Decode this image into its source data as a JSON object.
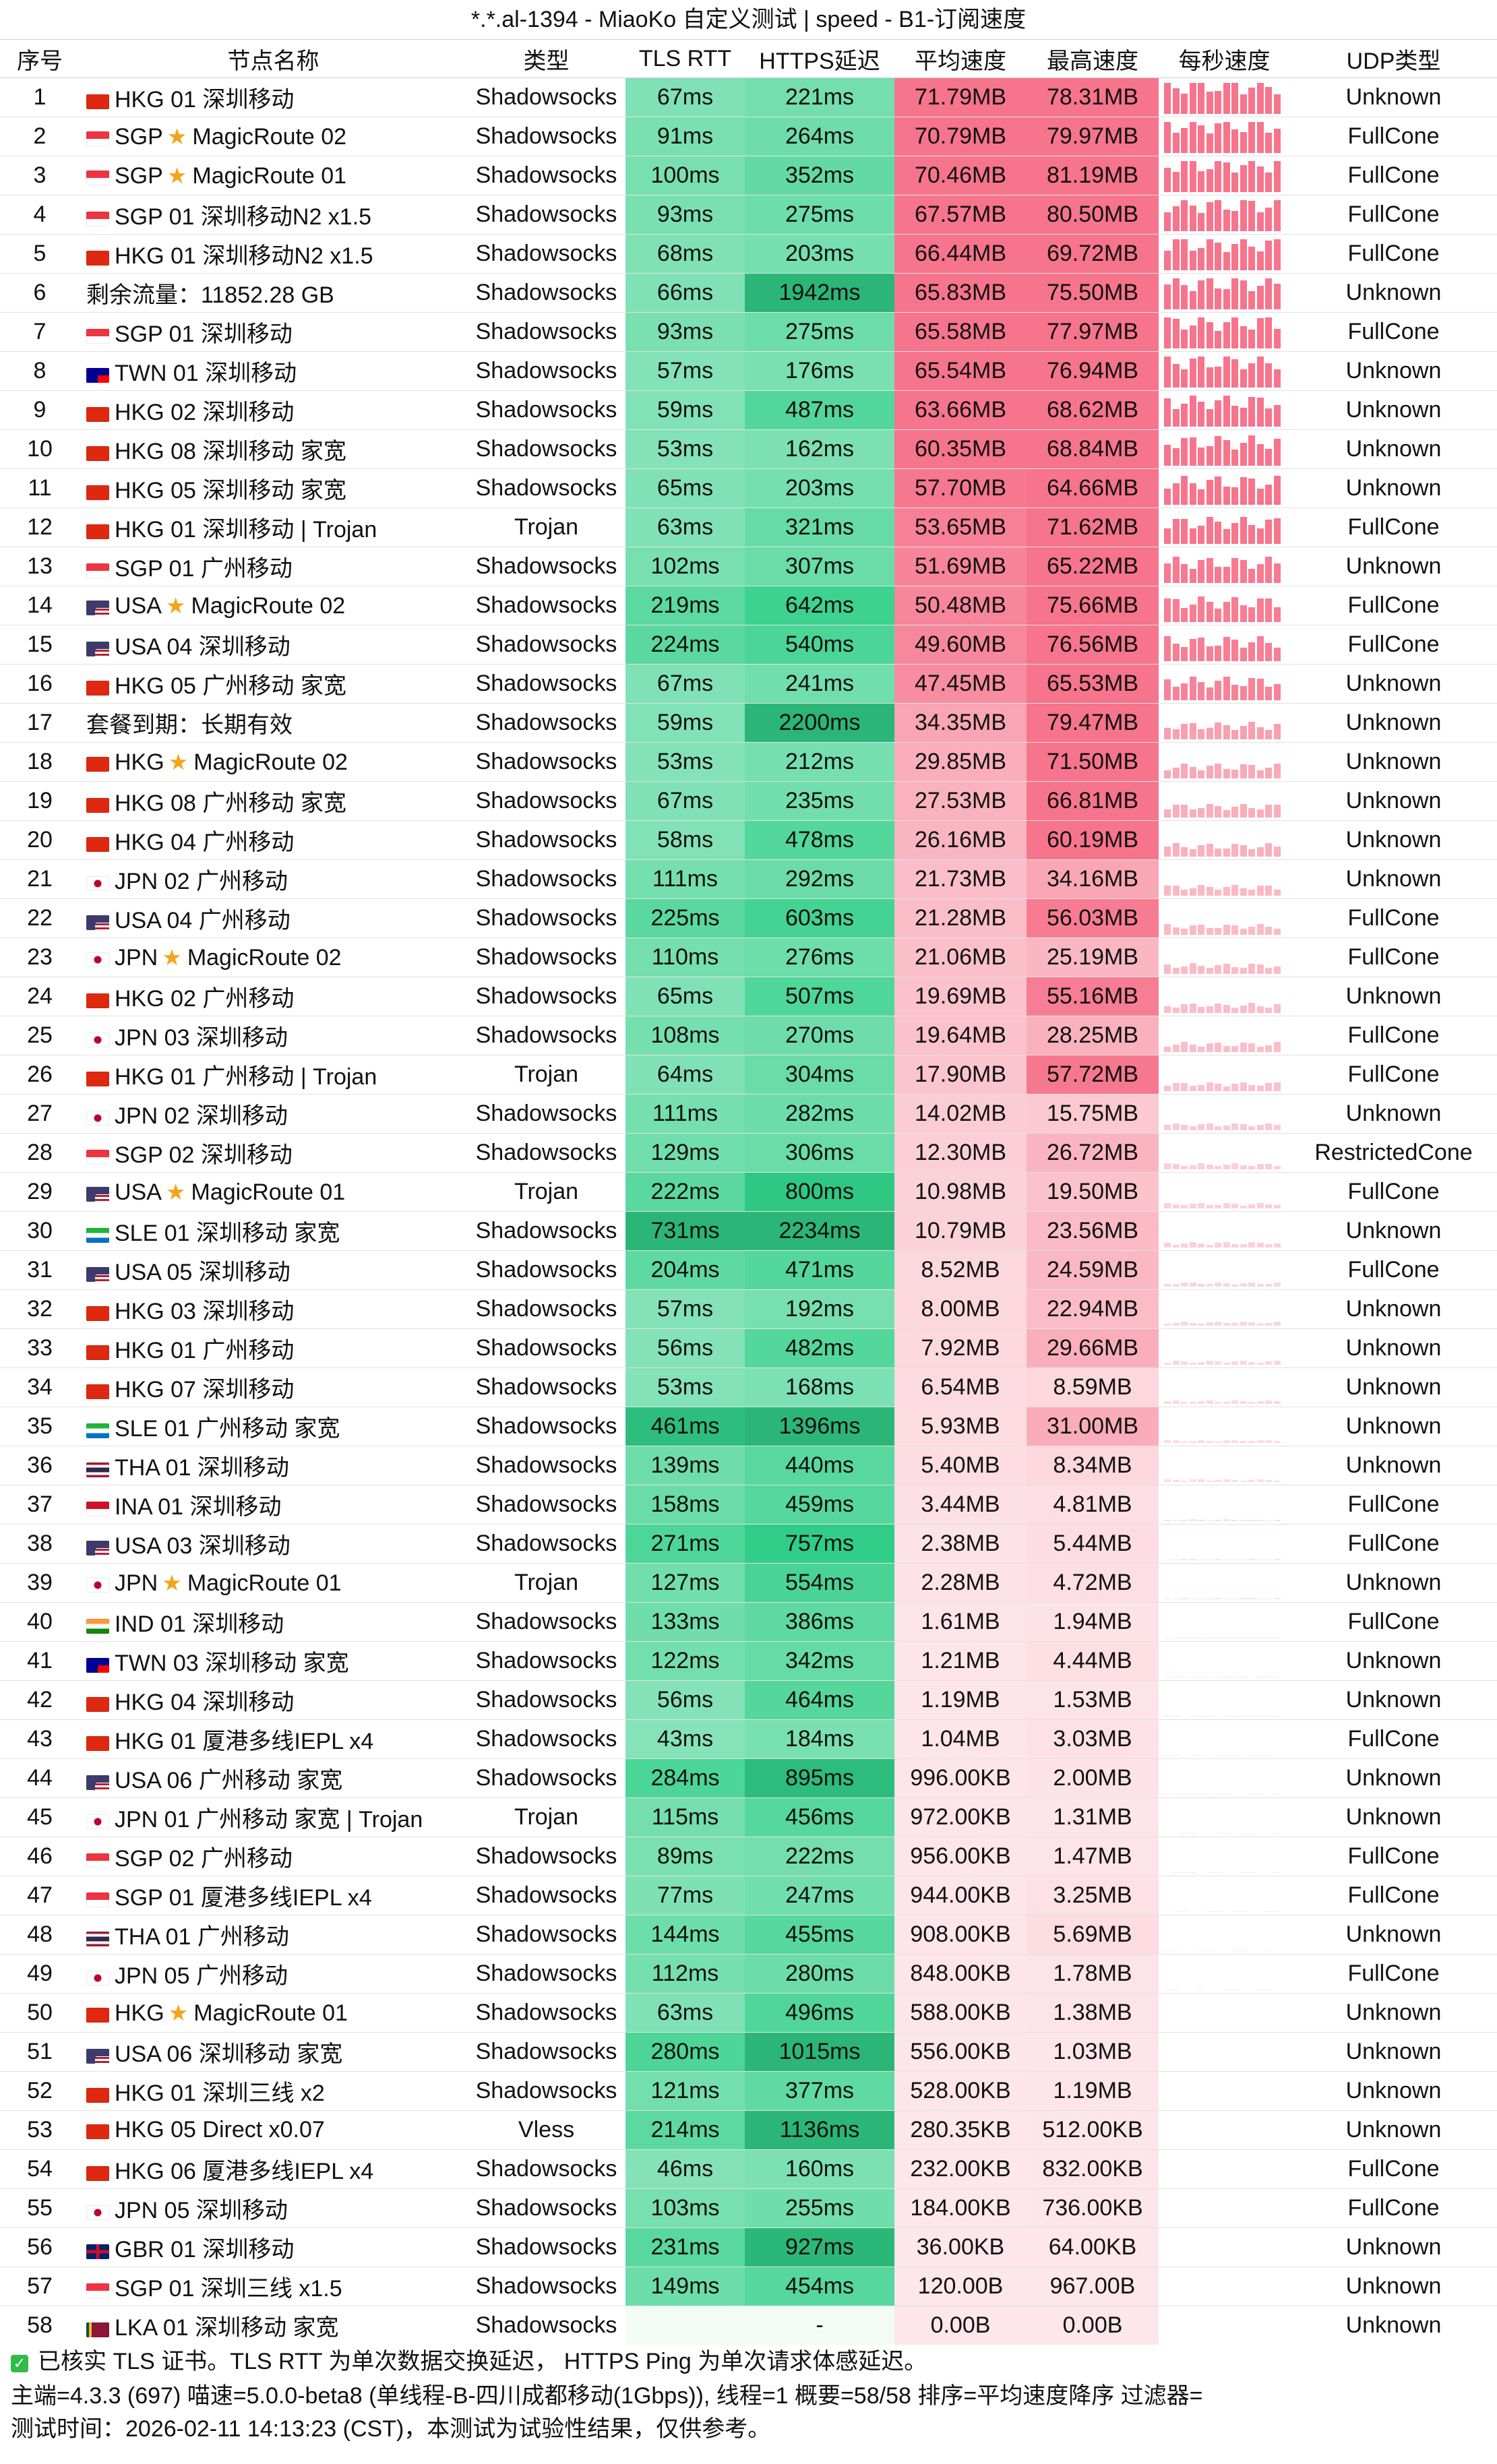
{
  "title": "*.*.al-1394 - MiaoKo 自定义测试 | speed - B1-订阅速度",
  "headers": [
    "序号",
    "节点名称",
    "类型",
    "TLS RTT",
    "HTTPS延迟",
    "平均速度",
    "最高速度",
    "每秒速度",
    "UDP类型"
  ],
  "rows": [
    {
      "idx": "1",
      "flag": "hk",
      "name": "HKG 01 深圳移动",
      "type": "Shadowsocks",
      "rtt": "67ms",
      "https": "221ms",
      "avg": "71.79MB",
      "max": "78.31MB",
      "udp": "Unknown"
    },
    {
      "idx": "2",
      "flag": "sg",
      "name": "SGP",
      "star": true,
      "name2": "MagicRoute 02",
      "type": "Shadowsocks",
      "rtt": "91ms",
      "https": "264ms",
      "avg": "70.79MB",
      "max": "79.97MB",
      "udp": "FullCone"
    },
    {
      "idx": "3",
      "flag": "sg",
      "name": "SGP",
      "star": true,
      "name2": "MagicRoute 01",
      "type": "Shadowsocks",
      "rtt": "100ms",
      "https": "352ms",
      "avg": "70.46MB",
      "max": "81.19MB",
      "udp": "FullCone"
    },
    {
      "idx": "4",
      "flag": "sg",
      "name": "SGP 01 深圳移动N2 x1.5",
      "type": "Shadowsocks",
      "rtt": "93ms",
      "https": "275ms",
      "avg": "67.57MB",
      "max": "80.50MB",
      "udp": "FullCone"
    },
    {
      "idx": "5",
      "flag": "hk",
      "name": "HKG 01 深圳移动N2 x1.5",
      "type": "Shadowsocks",
      "rtt": "68ms",
      "https": "203ms",
      "avg": "66.44MB",
      "max": "69.72MB",
      "udp": "FullCone"
    },
    {
      "idx": "6",
      "flag": "",
      "name": "剩余流量：11852.28 GB",
      "type": "Shadowsocks",
      "rtt": "66ms",
      "https": "1942ms",
      "avg": "65.83MB",
      "max": "75.50MB",
      "udp": "Unknown"
    },
    {
      "idx": "7",
      "flag": "sg",
      "name": "SGP 01 深圳移动",
      "type": "Shadowsocks",
      "rtt": "93ms",
      "https": "275ms",
      "avg": "65.58MB",
      "max": "77.97MB",
      "udp": "FullCone"
    },
    {
      "idx": "8",
      "flag": "tw",
      "name": "TWN 01 深圳移动",
      "type": "Shadowsocks",
      "rtt": "57ms",
      "https": "176ms",
      "avg": "65.54MB",
      "max": "76.94MB",
      "udp": "Unknown"
    },
    {
      "idx": "9",
      "flag": "hk",
      "name": "HKG 02 深圳移动",
      "type": "Shadowsocks",
      "rtt": "59ms",
      "https": "487ms",
      "avg": "63.66MB",
      "max": "68.62MB",
      "udp": "Unknown"
    },
    {
      "idx": "10",
      "flag": "hk",
      "name": "HKG 08 深圳移动 家宽",
      "type": "Shadowsocks",
      "rtt": "53ms",
      "https": "162ms",
      "avg": "60.35MB",
      "max": "68.84MB",
      "udp": "Unknown"
    },
    {
      "idx": "11",
      "flag": "hk",
      "name": "HKG 05 深圳移动 家宽",
      "type": "Shadowsocks",
      "rtt": "65ms",
      "https": "203ms",
      "avg": "57.70MB",
      "max": "64.66MB",
      "udp": "Unknown"
    },
    {
      "idx": "12",
      "flag": "hk",
      "name": "HKG 01 深圳移动 | Trojan",
      "type": "Trojan",
      "rtt": "63ms",
      "https": "321ms",
      "avg": "53.65MB",
      "max": "71.62MB",
      "udp": "FullCone"
    },
    {
      "idx": "13",
      "flag": "sg",
      "name": "SGP 01 广州移动",
      "type": "Shadowsocks",
      "rtt": "102ms",
      "https": "307ms",
      "avg": "51.69MB",
      "max": "65.22MB",
      "udp": "Unknown"
    },
    {
      "idx": "14",
      "flag": "us",
      "name": "USA",
      "star": true,
      "name2": "MagicRoute 02",
      "type": "Shadowsocks",
      "rtt": "219ms",
      "https": "642ms",
      "avg": "50.48MB",
      "max": "75.66MB",
      "udp": "FullCone"
    },
    {
      "idx": "15",
      "flag": "us",
      "name": "USA 04 深圳移动",
      "type": "Shadowsocks",
      "rtt": "224ms",
      "https": "540ms",
      "avg": "49.60MB",
      "max": "76.56MB",
      "udp": "FullCone"
    },
    {
      "idx": "16",
      "flag": "hk",
      "name": "HKG 05 广州移动 家宽",
      "type": "Shadowsocks",
      "rtt": "67ms",
      "https": "241ms",
      "avg": "47.45MB",
      "max": "65.53MB",
      "udp": "Unknown"
    },
    {
      "idx": "17",
      "flag": "",
      "name": "套餐到期：长期有效",
      "type": "Shadowsocks",
      "rtt": "59ms",
      "https": "2200ms",
      "avg": "34.35MB",
      "max": "79.47MB",
      "udp": "Unknown"
    },
    {
      "idx": "18",
      "flag": "hk",
      "name": "HKG",
      "star": true,
      "name2": "MagicRoute 02",
      "type": "Shadowsocks",
      "rtt": "53ms",
      "https": "212ms",
      "avg": "29.85MB",
      "max": "71.50MB",
      "udp": "Unknown"
    },
    {
      "idx": "19",
      "flag": "hk",
      "name": "HKG 08 广州移动 家宽",
      "type": "Shadowsocks",
      "rtt": "67ms",
      "https": "235ms",
      "avg": "27.53MB",
      "max": "66.81MB",
      "udp": "Unknown"
    },
    {
      "idx": "20",
      "flag": "hk",
      "name": "HKG 04 广州移动",
      "type": "Shadowsocks",
      "rtt": "58ms",
      "https": "478ms",
      "avg": "26.16MB",
      "max": "60.19MB",
      "udp": "Unknown"
    },
    {
      "idx": "21",
      "flag": "jp",
      "name": "JPN 02 广州移动",
      "type": "Shadowsocks",
      "rtt": "111ms",
      "https": "292ms",
      "avg": "21.73MB",
      "max": "34.16MB",
      "udp": "Unknown"
    },
    {
      "idx": "22",
      "flag": "us",
      "name": "USA 04 广州移动",
      "type": "Shadowsocks",
      "rtt": "225ms",
      "https": "603ms",
      "avg": "21.28MB",
      "max": "56.03MB",
      "udp": "FullCone"
    },
    {
      "idx": "23",
      "flag": "jp",
      "name": "JPN",
      "star": true,
      "name2": "MagicRoute 02",
      "type": "Shadowsocks",
      "rtt": "110ms",
      "https": "276ms",
      "avg": "21.06MB",
      "max": "25.19MB",
      "udp": "FullCone"
    },
    {
      "idx": "24",
      "flag": "hk",
      "name": "HKG 02 广州移动",
      "type": "Shadowsocks",
      "rtt": "65ms",
      "https": "507ms",
      "avg": "19.69MB",
      "max": "55.16MB",
      "udp": "Unknown"
    },
    {
      "idx": "25",
      "flag": "jp",
      "name": "JPN 03 深圳移动",
      "type": "Shadowsocks",
      "rtt": "108ms",
      "https": "270ms",
      "avg": "19.64MB",
      "max": "28.25MB",
      "udp": "FullCone"
    },
    {
      "idx": "26",
      "flag": "hk",
      "name": "HKG 01 广州移动 | Trojan",
      "type": "Trojan",
      "rtt": "64ms",
      "https": "304ms",
      "avg": "17.90MB",
      "max": "57.72MB",
      "udp": "FullCone"
    },
    {
      "idx": "27",
      "flag": "jp",
      "name": "JPN 02 深圳移动",
      "type": "Shadowsocks",
      "rtt": "111ms",
      "https": "282ms",
      "avg": "14.02MB",
      "max": "15.75MB",
      "udp": "Unknown"
    },
    {
      "idx": "28",
      "flag": "sg",
      "name": "SGP 02 深圳移动",
      "type": "Shadowsocks",
      "rtt": "129ms",
      "https": "306ms",
      "avg": "12.30MB",
      "max": "26.72MB",
      "udp": "RestrictedCone"
    },
    {
      "idx": "29",
      "flag": "us",
      "name": "USA",
      "star": true,
      "name2": "MagicRoute 01",
      "type": "Trojan",
      "rtt": "222ms",
      "https": "800ms",
      "avg": "10.98MB",
      "max": "19.50MB",
      "udp": "FullCone"
    },
    {
      "idx": "30",
      "flag": "sl",
      "name": "SLE 01 深圳移动 家宽",
      "type": "Shadowsocks",
      "rtt": "731ms",
      "https": "2234ms",
      "avg": "10.79MB",
      "max": "23.56MB",
      "udp": "Unknown"
    },
    {
      "idx": "31",
      "flag": "us",
      "name": "USA 05 深圳移动",
      "type": "Shadowsocks",
      "rtt": "204ms",
      "https": "471ms",
      "avg": "8.52MB",
      "max": "24.59MB",
      "udp": "FullCone"
    },
    {
      "idx": "32",
      "flag": "hk",
      "name": "HKG 03 深圳移动",
      "type": "Shadowsocks",
      "rtt": "57ms",
      "https": "192ms",
      "avg": "8.00MB",
      "max": "22.94MB",
      "udp": "Unknown"
    },
    {
      "idx": "33",
      "flag": "hk",
      "name": "HKG 01 广州移动",
      "type": "Shadowsocks",
      "rtt": "56ms",
      "https": "482ms",
      "avg": "7.92MB",
      "max": "29.66MB",
      "udp": "Unknown"
    },
    {
      "idx": "34",
      "flag": "hk",
      "name": "HKG 07 深圳移动",
      "type": "Shadowsocks",
      "rtt": "53ms",
      "https": "168ms",
      "avg": "6.54MB",
      "max": "8.59MB",
      "udp": "Unknown"
    },
    {
      "idx": "35",
      "flag": "sl",
      "name": "SLE 01 广州移动 家宽",
      "type": "Shadowsocks",
      "rtt": "461ms",
      "https": "1396ms",
      "avg": "5.93MB",
      "max": "31.00MB",
      "udp": "Unknown"
    },
    {
      "idx": "36",
      "flag": "th",
      "name": "THA 01 深圳移动",
      "type": "Shadowsocks",
      "rtt": "139ms",
      "https": "440ms",
      "avg": "5.40MB",
      "max": "8.34MB",
      "udp": "Unknown"
    },
    {
      "idx": "37",
      "flag": "id",
      "name": "INA 01 深圳移动",
      "type": "Shadowsocks",
      "rtt": "158ms",
      "https": "459ms",
      "avg": "3.44MB",
      "max": "4.81MB",
      "udp": "FullCone"
    },
    {
      "idx": "38",
      "flag": "us",
      "name": "USA 03 深圳移动",
      "type": "Shadowsocks",
      "rtt": "271ms",
      "https": "757ms",
      "avg": "2.38MB",
      "max": "5.44MB",
      "udp": "FullCone"
    },
    {
      "idx": "39",
      "flag": "jp",
      "name": "JPN",
      "star": true,
      "name2": "MagicRoute 01",
      "type": "Trojan",
      "rtt": "127ms",
      "https": "554ms",
      "avg": "2.28MB",
      "max": "4.72MB",
      "udp": "Unknown"
    },
    {
      "idx": "40",
      "flag": "in",
      "name": "IND 01 深圳移动",
      "type": "Shadowsocks",
      "rtt": "133ms",
      "https": "386ms",
      "avg": "1.61MB",
      "max": "1.94MB",
      "udp": "FullCone"
    },
    {
      "idx": "41",
      "flag": "tw",
      "name": "TWN 03 深圳移动 家宽",
      "type": "Shadowsocks",
      "rtt": "122ms",
      "https": "342ms",
      "avg": "1.21MB",
      "max": "4.44MB",
      "udp": "Unknown"
    },
    {
      "idx": "42",
      "flag": "hk",
      "name": "HKG 04 深圳移动",
      "type": "Shadowsocks",
      "rtt": "56ms",
      "https": "464ms",
      "avg": "1.19MB",
      "max": "1.53MB",
      "udp": "Unknown"
    },
    {
      "idx": "43",
      "flag": "hk",
      "name": "HKG 01 厦港多线IEPL x4",
      "type": "Shadowsocks",
      "rtt": "43ms",
      "https": "184ms",
      "avg": "1.04MB",
      "max": "3.03MB",
      "udp": "FullCone"
    },
    {
      "idx": "44",
      "flag": "us",
      "name": "USA 06 广州移动 家宽",
      "type": "Shadowsocks",
      "rtt": "284ms",
      "https": "895ms",
      "avg": "996.00KB",
      "max": "2.00MB",
      "udp": "Unknown"
    },
    {
      "idx": "45",
      "flag": "jp",
      "name": "JPN 01 广州移动 家宽 | Trojan",
      "type": "Trojan",
      "rtt": "115ms",
      "https": "456ms",
      "avg": "972.00KB",
      "max": "1.31MB",
      "udp": "Unknown"
    },
    {
      "idx": "46",
      "flag": "sg",
      "name": "SGP 02 广州移动",
      "type": "Shadowsocks",
      "rtt": "89ms",
      "https": "222ms",
      "avg": "956.00KB",
      "max": "1.47MB",
      "udp": "FullCone"
    },
    {
      "idx": "47",
      "flag": "sg",
      "name": "SGP 01 厦港多线IEPL x4",
      "type": "Shadowsocks",
      "rtt": "77ms",
      "https": "247ms",
      "avg": "944.00KB",
      "max": "3.25MB",
      "udp": "FullCone"
    },
    {
      "idx": "48",
      "flag": "th",
      "name": "THA 01 广州移动",
      "type": "Shadowsocks",
      "rtt": "144ms",
      "https": "455ms",
      "avg": "908.00KB",
      "max": "5.69MB",
      "udp": "Unknown"
    },
    {
      "idx": "49",
      "flag": "jp",
      "name": "JPN 05 广州移动",
      "type": "Shadowsocks",
      "rtt": "112ms",
      "https": "280ms",
      "avg": "848.00KB",
      "max": "1.78MB",
      "udp": "FullCone"
    },
    {
      "idx": "50",
      "flag": "hk",
      "name": "HKG",
      "star": true,
      "name2": "MagicRoute 01",
      "type": "Shadowsocks",
      "rtt": "63ms",
      "https": "496ms",
      "avg": "588.00KB",
      "max": "1.38MB",
      "udp": "Unknown"
    },
    {
      "idx": "51",
      "flag": "us",
      "name": "USA 06 深圳移动 家宽",
      "type": "Shadowsocks",
      "rtt": "280ms",
      "https": "1015ms",
      "avg": "556.00KB",
      "max": "1.03MB",
      "udp": "Unknown"
    },
    {
      "idx": "52",
      "flag": "hk",
      "name": "HKG 01 深圳三线 x2",
      "type": "Shadowsocks",
      "rtt": "121ms",
      "https": "377ms",
      "avg": "528.00KB",
      "max": "1.19MB",
      "udp": "Unknown"
    },
    {
      "idx": "53",
      "flag": "hk",
      "name": "HKG 05 Direct x0.07",
      "type": "Vless",
      "rtt": "214ms",
      "https": "1136ms",
      "avg": "280.35KB",
      "max": "512.00KB",
      "udp": "Unknown"
    },
    {
      "idx": "54",
      "flag": "hk",
      "name": "HKG 06 厦港多线IEPL x4",
      "type": "Shadowsocks",
      "rtt": "46ms",
      "https": "160ms",
      "avg": "232.00KB",
      "max": "832.00KB",
      "udp": "FullCone"
    },
    {
      "idx": "55",
      "flag": "jp",
      "name": "JPN 05 深圳移动",
      "type": "Shadowsocks",
      "rtt": "103ms",
      "https": "255ms",
      "avg": "184.00KB",
      "max": "736.00KB",
      "udp": "FullCone"
    },
    {
      "idx": "56",
      "flag": "gb",
      "name": "GBR 01 深圳移动",
      "type": "Shadowsocks",
      "rtt": "231ms",
      "https": "927ms",
      "avg": "36.00KB",
      "max": "64.00KB",
      "udp": "Unknown"
    },
    {
      "idx": "57",
      "flag": "sg",
      "name": "SGP 01 深圳三线 x1.5",
      "type": "Shadowsocks",
      "rtt": "149ms",
      "https": "454ms",
      "avg": "120.00B",
      "max": "967.00B",
      "udp": "Unknown"
    },
    {
      "idx": "58",
      "flag": "lk",
      "name": "LKA 01 深圳移动 家宽",
      "type": "Shadowsocks",
      "rtt": "",
      "https": "-",
      "avg": "0.00B",
      "max": "0.00B",
      "udp": "Unknown"
    }
  ],
  "footer": {
    "line1": "已核实 TLS 证书。TLS RTT 为单次数据交换延迟，  HTTPS Ping 为单次请求体感延迟。",
    "line2": "主端=4.3.3 (697) 喵速=5.0.0-beta8 (单线程-B-四川成都移动(1Gbps)), 线程=1 概要=58/58 排序=平均速度降序 过滤器=",
    "line3": "测试时间：2026-02-11 14:13:23 (CST)，本测试为试验性结果，仅供参考。"
  }
}
